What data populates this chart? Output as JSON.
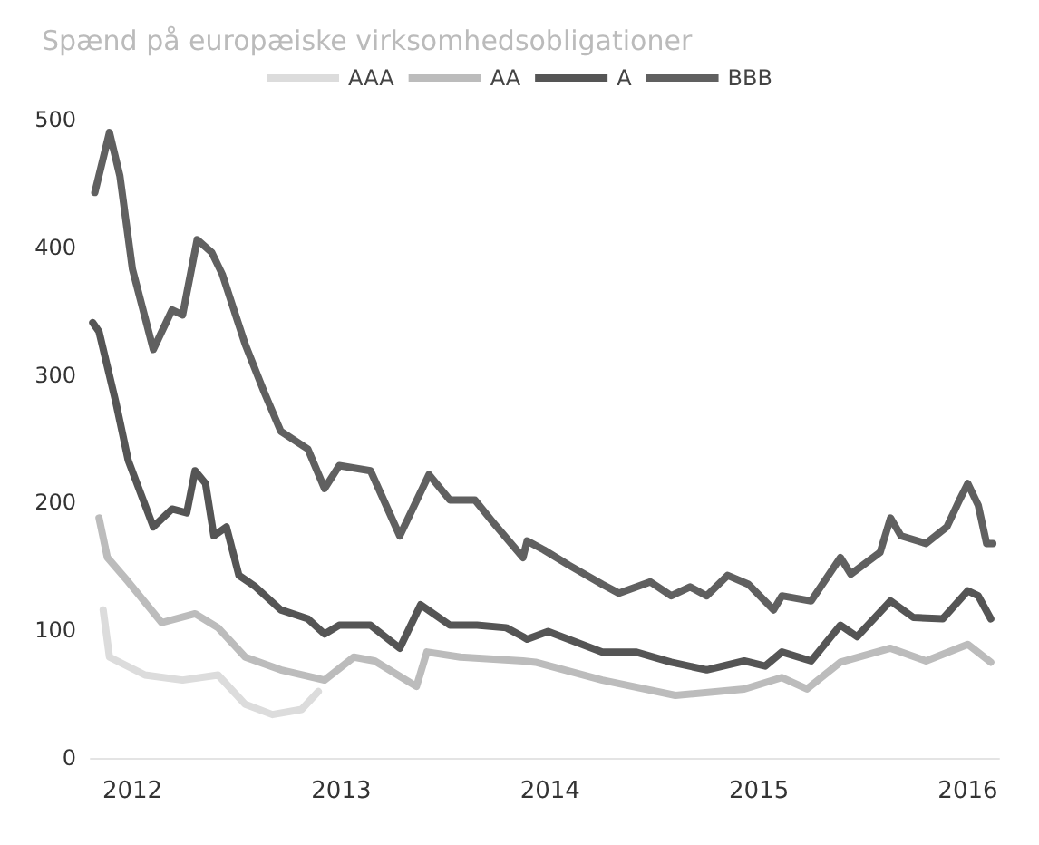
{
  "chart_data": {
    "type": "line",
    "title": "Spænd på europæiske virksomhedsobligationer",
    "xlim": [
      2011.8,
      2016.15
    ],
    "xticks": [
      2012,
      2013,
      2014,
      2015,
      2016
    ],
    "ylim": [
      0,
      500
    ],
    "yticks": [
      0,
      100,
      200,
      300,
      400,
      500
    ],
    "grid": false,
    "legend": "top",
    "marker": "none",
    "line_style": "solid",
    "series": [
      {
        "name": "AAA",
        "color": "#dcdcdc",
        "x": [
          2011.86,
          2011.89,
          2012.06,
          2012.24,
          2012.41,
          2012.54,
          2012.67,
          2012.81,
          2012.89
        ],
        "values": [
          116,
          79,
          65,
          61,
          65,
          42,
          34,
          38,
          52
        ]
      },
      {
        "name": "AA",
        "color": "#bcbcbc",
        "x": [
          2011.84,
          2011.88,
          2011.98,
          2012.14,
          2012.3,
          2012.41,
          2012.54,
          2012.71,
          2012.92,
          2013.06,
          2013.16,
          2013.36,
          2013.41,
          2013.57,
          2013.87,
          2013.93,
          2014.25,
          2014.6,
          2014.93,
          2015.11,
          2015.23,
          2015.39,
          2015.63,
          2015.8,
          2016.0,
          2016.11
        ],
        "values": [
          188,
          157,
          138,
          106,
          113,
          102,
          79,
          69,
          61,
          79,
          76,
          56,
          83,
          79,
          76,
          75,
          61,
          49,
          54,
          63,
          54,
          75,
          86,
          76,
          89,
          75
        ]
      },
      {
        "name": "A",
        "color": "#555555",
        "x": [
          2011.81,
          2011.84,
          2011.92,
          2011.98,
          2012.1,
          2012.19,
          2012.26,
          2012.3,
          2012.35,
          2012.39,
          2012.45,
          2012.51,
          2012.59,
          2012.71,
          2012.84,
          2012.92,
          2012.99,
          2013.14,
          2013.28,
          2013.38,
          2013.52,
          2013.65,
          2013.79,
          2013.87,
          2013.89,
          2013.99,
          2014.25,
          2014.41,
          2014.58,
          2014.75,
          2014.93,
          2015.03,
          2015.11,
          2015.25,
          2015.39,
          2015.47,
          2015.63,
          2015.74,
          2015.88,
          2016.0,
          2016.05,
          2016.11
        ],
        "values": [
          341,
          334,
          279,
          233,
          181,
          195,
          192,
          225,
          215,
          174,
          181,
          143,
          134,
          116,
          109,
          97,
          104,
          104,
          86,
          120,
          104,
          104,
          102,
          95,
          93,
          99,
          83,
          83,
          75,
          69,
          76,
          72,
          83,
          76,
          104,
          95,
          123,
          110,
          109,
          131,
          127,
          109
        ]
      },
      {
        "name": "BBB",
        "color": "#606060",
        "x": [
          2011.82,
          2011.89,
          2011.94,
          2012.0,
          2012.1,
          2012.19,
          2012.24,
          2012.31,
          2012.38,
          2012.43,
          2012.54,
          2012.63,
          2012.71,
          2012.84,
          2012.92,
          2012.99,
          2013.14,
          2013.28,
          2013.42,
          2013.52,
          2013.64,
          2013.73,
          2013.87,
          2013.89,
          2013.97,
          2014.09,
          2014.25,
          2014.33,
          2014.48,
          2014.58,
          2014.67,
          2014.75,
          2014.85,
          2014.95,
          2015.07,
          2015.11,
          2015.25,
          2015.39,
          2015.44,
          2015.58,
          2015.63,
          2015.68,
          2015.8,
          2015.9,
          2015.96,
          2016.0,
          2016.05,
          2016.09,
          2016.12
        ],
        "values": [
          443,
          490,
          456,
          383,
          320,
          351,
          347,
          406,
          396,
          379,
          324,
          287,
          256,
          242,
          211,
          229,
          225,
          174,
          222,
          202,
          202,
          184,
          157,
          170,
          163,
          151,
          136,
          129,
          138,
          127,
          134,
          127,
          143,
          136,
          116,
          127,
          123,
          157,
          144,
          161,
          188,
          174,
          168,
          181,
          202,
          215,
          198,
          168,
          168
        ]
      }
    ]
  }
}
